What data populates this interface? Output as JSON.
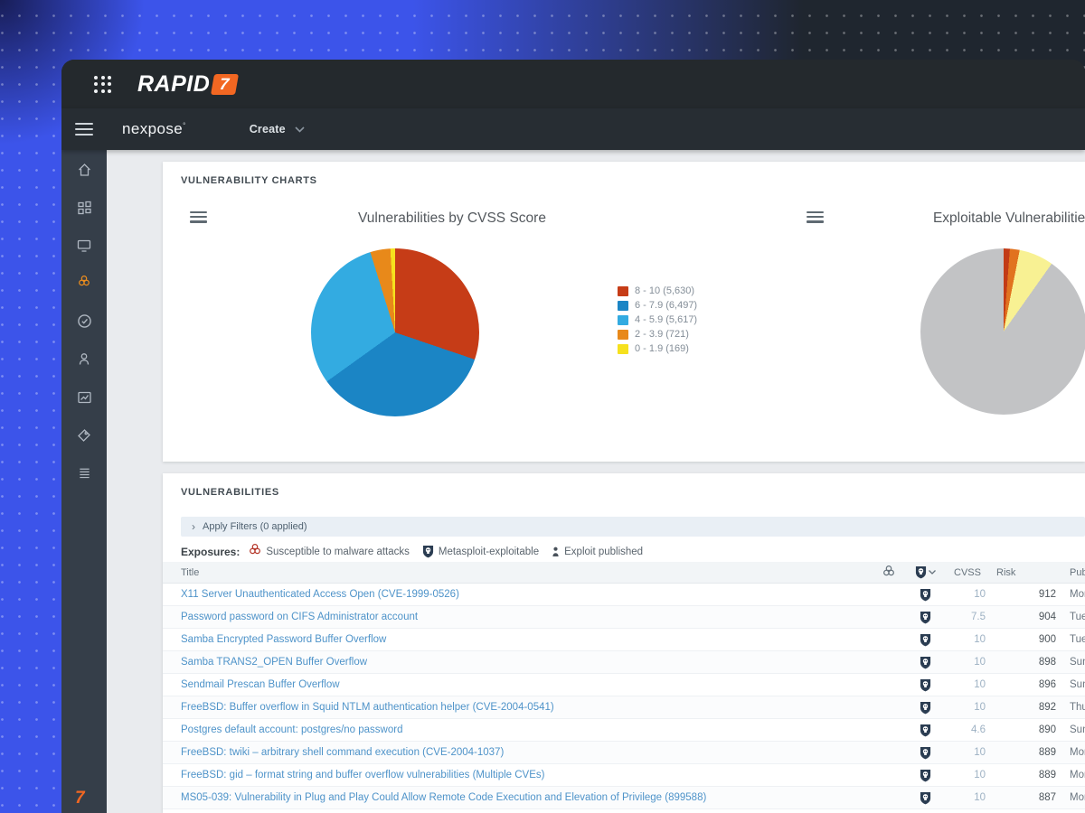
{
  "brand": {
    "name": "RAPID",
    "seven": "7"
  },
  "nav": {
    "product": "nexpose",
    "create": "Create"
  },
  "sidebar": {
    "icons": [
      "home-icon",
      "dashboard-icon",
      "assets-icon",
      "vulnerabilities-icon",
      "policies-icon",
      "user-icon",
      "reports-icon",
      "tags-icon",
      "audit-log-icon"
    ],
    "active_item": "vulnerabilities-icon",
    "accent_color": "#ec8d1e"
  },
  "charts_card": {
    "header": "VULNERABILITY CHARTS"
  },
  "chart_data": [
    {
      "type": "pie",
      "title": "Vulnerabilities by CVSS Score",
      "legend_position": "right",
      "start_angle_deg": 0,
      "clockwise": true,
      "slices": [
        {
          "label": "8 - 10 (5,630)",
          "value": 5630,
          "color": "#c63c17"
        },
        {
          "label": "6 - 7.9 (6,497)",
          "value": 6497,
          "color": "#1b85c5"
        },
        {
          "label": "4 - 5.9 (5,617)",
          "value": 5617,
          "color": "#33abe1"
        },
        {
          "label": "2 - 3.9 (721)",
          "value": 721,
          "color": "#e8891a"
        },
        {
          "label": "0 - 1.9 (169)",
          "value": 169,
          "color": "#f6e11e"
        }
      ]
    },
    {
      "type": "pie",
      "title": "Exploitable Vulnerabilities",
      "legend_position": "none",
      "start_angle_deg": 0,
      "clockwise": true,
      "values_are_percent_estimates": true,
      "slices": [
        {
          "label": "",
          "value": 1.2,
          "color": "#c23b16"
        },
        {
          "label": "",
          "value": 1.9,
          "color": "#e1731f"
        },
        {
          "label": "",
          "value": 6.7,
          "color": "#f8f193"
        },
        {
          "label": "",
          "value": 90.2,
          "color": "#c2c3c5"
        }
      ]
    }
  ],
  "vulns_card": {
    "header": "VULNERABILITIES",
    "filter_label": "Apply Filters (0 applied)",
    "exposures_label": "Exposures:",
    "exposures": [
      {
        "icon": "biohazard-icon",
        "label": "Susceptible to malware attacks"
      },
      {
        "icon": "metasploit-icon",
        "label": "Metasploit-exploitable"
      },
      {
        "icon": "exploit-icon",
        "label": "Exploit published"
      }
    ],
    "table": {
      "headers": {
        "title": "Title",
        "malware_icon": "biohazard-icon",
        "metasploit_icon": "metasploit-icon",
        "cvss": "CVSS",
        "risk": "Risk",
        "published": "Published"
      },
      "rows": [
        {
          "title": "X11 Server Unauthenticated Access Open (CVE-1999-0526)",
          "metasploit": true,
          "cvss": "10",
          "risk": "912",
          "published": "Mon"
        },
        {
          "title": "Password password on CIFS Administrator account",
          "metasploit": true,
          "cvss": "7.5",
          "risk": "904",
          "published": "Tue"
        },
        {
          "title": "Samba Encrypted Password Buffer Overflow",
          "metasploit": true,
          "cvss": "10",
          "risk": "900",
          "published": "Tue"
        },
        {
          "title": "Samba TRANS2_OPEN Buffer Overflow",
          "metasploit": true,
          "cvss": "10",
          "risk": "898",
          "published": "Sun"
        },
        {
          "title": "Sendmail Prescan Buffer Overflow",
          "metasploit": true,
          "cvss": "10",
          "risk": "896",
          "published": "Sun"
        },
        {
          "title": "FreeBSD: Buffer overflow in Squid NTLM authentication helper (CVE-2004-0541)",
          "metasploit": true,
          "cvss": "10",
          "risk": "892",
          "published": "Thu"
        },
        {
          "title": "Postgres default account: postgres/no password",
          "metasploit": true,
          "cvss": "4.6",
          "risk": "890",
          "published": "Sun"
        },
        {
          "title": "FreeBSD: twiki – arbitrary shell command execution (CVE-2004-1037)",
          "metasploit": true,
          "cvss": "10",
          "risk": "889",
          "published": "Mon"
        },
        {
          "title": "FreeBSD: gid – format string and buffer overflow vulnerabilities (Multiple CVEs)",
          "metasploit": true,
          "cvss": "10",
          "risk": "889",
          "published": "Mon"
        },
        {
          "title": "MS05-039: Vulnerability in Plug and Play Could Allow Remote Code Execution and Elevation of Privilege (899588)",
          "metasploit": true,
          "cvss": "10",
          "risk": "887",
          "published": "Mon"
        }
      ]
    }
  }
}
